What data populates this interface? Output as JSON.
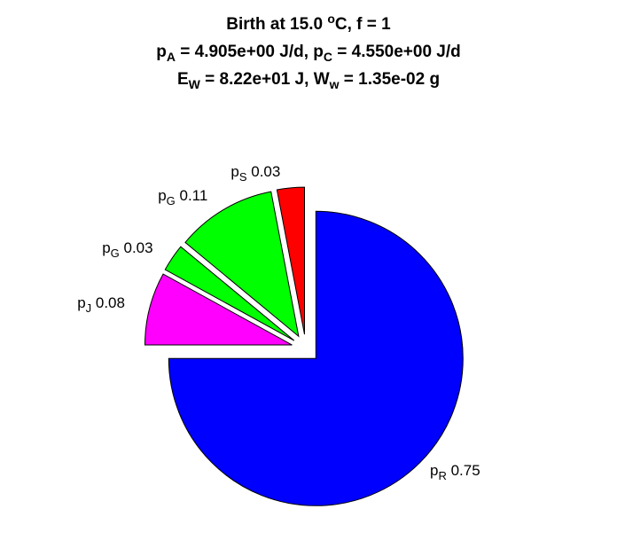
{
  "title": {
    "line1": {
      "prefix": "Birth at 15.0 ",
      "deg_sup": "o",
      "suffix": "C, f = 1"
    },
    "line2": {
      "p1": "p",
      "s1": "A",
      "m1": " = 4.905e+00 J/d, ",
      "p2": "p",
      "s2": "C",
      "m2": " = 4.550e+00 J/d"
    },
    "line3": {
      "p1": "E",
      "s1": "W",
      "m1": " = 8.22e+01 J, ",
      "p2": "W",
      "s2": "w",
      "m2": " = 1.35e-02 g"
    }
  },
  "chart_data": {
    "type": "pie",
    "start_direction": "up",
    "direction": "clockwise",
    "exploded": true,
    "slices": [
      {
        "base": "p",
        "sub": "R",
        "value": 0.75,
        "label_value": "0.75",
        "color": "#0000ff"
      },
      {
        "base": "p",
        "sub": "J",
        "value": 0.08,
        "label_value": "0.08",
        "color": "#ff00ff"
      },
      {
        "base": "p",
        "sub": "G",
        "value": 0.03,
        "label_value": "0.03",
        "color": "#00ff00"
      },
      {
        "base": "p",
        "sub": "G",
        "value": 0.11,
        "label_value": "0.11",
        "color": "#00ff00"
      },
      {
        "base": "p",
        "sub": "S",
        "value": 0.03,
        "label_value": "0.03",
        "color": "#ff0000"
      }
    ]
  }
}
